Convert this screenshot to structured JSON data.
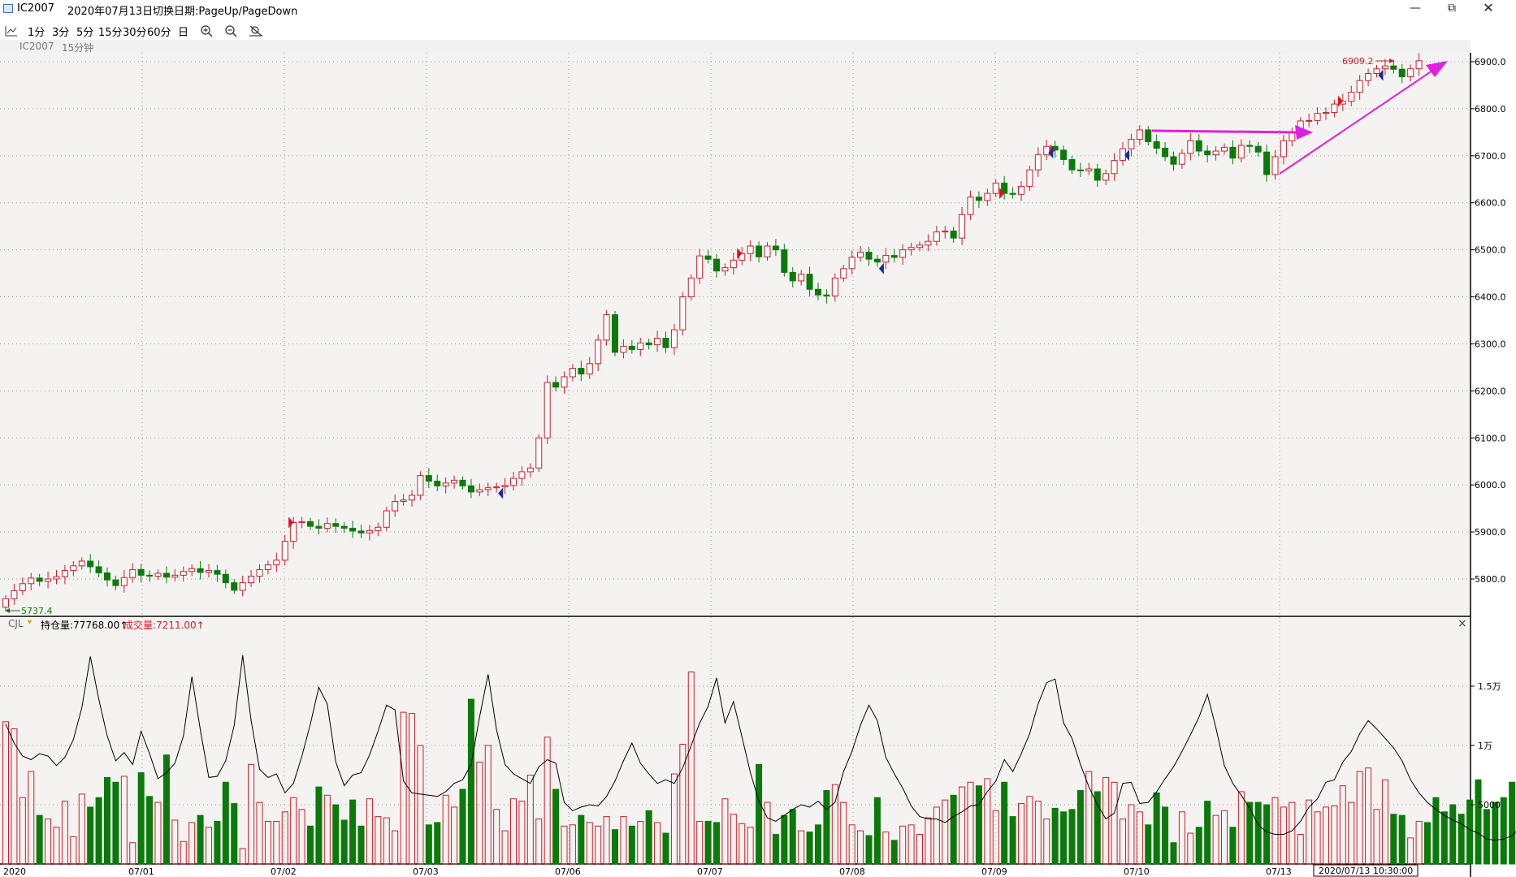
{
  "window": {
    "symbol": "IC2007",
    "date": "2020年07月13日",
    "hint": "切换日期:PageUp/PageDown",
    "minimize_icon": "minimize-icon",
    "restore_icon": "restore-icon",
    "close_icon": "close-icon"
  },
  "toolbar": {
    "chart_icon": "line-chart-icon",
    "periods": [
      "1分",
      "3分",
      "5分",
      "15分",
      "30分",
      "60分",
      "日"
    ],
    "zoom_in_icon": "zoom-in-icon",
    "zoom_out_icon": "zoom-out-icon",
    "reset_icon": "reset-zoom-icon"
  },
  "subheader": {
    "symbol": "IC2007",
    "period": "15分钟"
  },
  "volume_header": {
    "indicator": "CJL",
    "oi_label": "持仓量:77768.00↑",
    "vol_label": "成交量:7211.00↑",
    "close_icon": "close-icon"
  },
  "chart_data": {
    "type": "candlestick",
    "price_axis": {
      "ticks": [
        "6900.0",
        "6800.0",
        "6700.0",
        "6600.0",
        "6500.0",
        "6400.0",
        "6300.0",
        "6200.0",
        "6100.0",
        "6000.0",
        "5900.0",
        "5800.0"
      ],
      "min": 5700,
      "max": 6915
    },
    "volume_axis": {
      "ticks": [
        "1.5万",
        "1万",
        "5000"
      ]
    },
    "date_labels": [
      "2020",
      "07/01",
      "07/02",
      "07/03",
      "07/06",
      "07/07",
      "07/08",
      "07/09",
      "07/10",
      "07/13"
    ],
    "cursor_time": "2020/07/13 10:30:00",
    "high_annotation": "6909.2",
    "low_annotation": "5737.4",
    "closes": [
      5758,
      5775,
      5790,
      5802,
      5795,
      5800,
      5805,
      5818,
      5828,
      5838,
      5826,
      5813,
      5798,
      5786,
      5803,
      5820,
      5808,
      5806,
      5812,
      5804,
      5808,
      5816,
      5822,
      5814,
      5818,
      5810,
      5792,
      5776,
      5792,
      5806,
      5820,
      5830,
      5840,
      5880,
      5920,
      5922,
      5912,
      5908,
      5918,
      5912,
      5908,
      5902,
      5898,
      5903,
      5910,
      5945,
      5965,
      5968,
      5978,
      6020,
      6008,
      5998,
      6004,
      6010,
      5998,
      5985,
      5990,
      5994,
      5996,
      5999,
      6014,
      6028,
      6036,
      6100,
      6218,
      6208,
      6230,
      6248,
      6236,
      6258,
      6308,
      6362,
      6282,
      6295,
      6288,
      6302,
      6298,
      6312,
      6292,
      6330,
      6400,
      6440,
      6487,
      6480,
      6455,
      6462,
      6478,
      6492,
      6508,
      6485,
      6508,
      6500,
      6452,
      6434,
      6448,
      6416,
      6404,
      6402,
      6440,
      6460,
      6484,
      6495,
      6480,
      6474,
      6488,
      6484,
      6500,
      6505,
      6510,
      6518,
      6538,
      6540,
      6525,
      6575,
      6612,
      6605,
      6620,
      6642,
      6620,
      6618,
      6635,
      6670,
      6702,
      6720,
      6712,
      6692,
      6670,
      6668,
      6672,
      6648,
      6662,
      6690,
      6715,
      6735,
      6755,
      6730,
      6716,
      6698,
      6682,
      6705,
      6732,
      6710,
      6702,
      6710,
      6718,
      6695,
      6722,
      6720,
      6708,
      6660,
      6698,
      6732,
      6750,
      6774,
      6775,
      6790,
      6792,
      6810,
      6816,
      6835,
      6860,
      6875,
      6885,
      6891,
      6884,
      6868,
      6885,
      6902
    ],
    "volumes": [
      12000,
      11400,
      5600,
      7800,
      4100,
      3800,
      3100,
      5300,
      2300,
      5900,
      4800,
      5600,
      7300,
      6900,
      7400,
      1800,
      7700,
      5700,
      5200,
      9200,
      3700,
      1900,
      3500,
      4100,
      3100,
      3600,
      6900,
      5100,
      1300,
      8400,
      5200,
      3600,
      3600,
      4400,
      5600,
      4600,
      3200,
      6500,
      5800,
      5000,
      3700,
      5400,
      3200,
      5500,
      4000,
      3900,
      2800,
      12800,
      12700,
      10000,
      3300,
      3500,
      5800,
      4800,
      6300,
      13900,
      8600,
      10000,
      4600,
      2800,
      5500,
      5300,
      7500,
      3800,
      10700,
      6300,
      3200,
      3300,
      4100,
      3500,
      3200,
      4000,
      2900,
      4000,
      3200,
      3600,
      4500,
      3500,
      2600,
      7600,
      10100,
      16200,
      3600,
      3600,
      3500,
      5500,
      4200,
      3400,
      3100,
      8400,
      5200,
      2500,
      4100,
      4600,
      2800,
      2700,
      3300,
      6200,
      6700,
      5200,
      3300,
      2800,
      2400,
      5600,
      2700,
      2000,
      3200,
      3300,
      2500,
      3900,
      4800,
      5400,
      5800,
      6500,
      6900,
      6600,
      7200,
      4500,
      6900,
      4000,
      5100,
      5700,
      5300,
      3800,
      4700,
      4400,
      4600,
      6200,
      7800,
      6100,
      7300,
      6900,
      3800,
      5000,
      4400,
      3300,
      6000,
      4800,
      1800,
      4400,
      2600,
      3100,
      5300,
      4100,
      4500,
      3100,
      6100,
      5200,
      5200,
      5000,
      5600,
      4800,
      5200,
      2500,
      5400,
      4400,
      4800,
      4900,
      6600,
      5200,
      7800,
      8100,
      4600,
      7100,
      4200,
      4100,
      2200,
      3600,
      3500,
      5600,
      4400,
      5000,
      4200,
      5400,
      7100,
      4600,
      5200,
      5600,
      6900,
      4000
    ],
    "open_interest": [
      11800,
      10200,
      9100,
      8800,
      9300,
      9100,
      8300,
      9000,
      10500,
      13200,
      17500,
      13900,
      10800,
      8700,
      9400,
      8400,
      11200,
      9300,
      7200,
      7700,
      8500,
      10800,
      15800,
      11300,
      7300,
      7400,
      8700,
      11700,
      17600,
      12100,
      8000,
      7300,
      7600,
      6000,
      6800,
      9100,
      11800,
      14900,
      13500,
      8600,
      6600,
      7500,
      7700,
      9200,
      11200,
      13400,
      13000,
      7000,
      6000,
      5900,
      5800,
      5700,
      6100,
      6800,
      7100,
      8400,
      12400,
      16000,
      11300,
      8400,
      7600,
      7200,
      6800,
      8200,
      8800,
      8500,
      5200,
      4500,
      4800,
      5000,
      4900,
      5700,
      7000,
      8700,
      10200,
      8500,
      7600,
      6800,
      7100,
      6800,
      8100,
      10000,
      11900,
      13300,
      15700,
      11900,
      13700,
      10700,
      7700,
      5300,
      3900,
      3600,
      4100,
      4600,
      5000,
      4800,
      5300,
      4600,
      5200,
      7800,
      9500,
      11700,
      13400,
      12100,
      9000,
      7600,
      6400,
      4900,
      4000,
      3800,
      3800,
      3500,
      4000,
      4400,
      4900,
      5000,
      6100,
      7000,
      8800,
      7800,
      9300,
      11000,
      13500,
      15300,
      15600,
      11900,
      10600,
      8400,
      6500,
      5000,
      3800,
      4300,
      6800,
      6900,
      5100,
      5200,
      6100,
      7200,
      8200,
      9500,
      10900,
      12400,
      14300,
      11500,
      8300,
      6800,
      5800,
      4700,
      3300,
      2700,
      2500,
      2500,
      2800,
      3600,
      4800,
      5500,
      6900,
      7100,
      8600,
      9500,
      11000,
      12100,
      11400,
      10600,
      9800,
      8700,
      7100,
      6000,
      5200,
      4600,
      4100,
      3700,
      3400,
      2900,
      2600,
      2100,
      2000,
      2100,
      2400,
      3100,
      3800,
      4600,
      6300,
      7800
    ]
  }
}
